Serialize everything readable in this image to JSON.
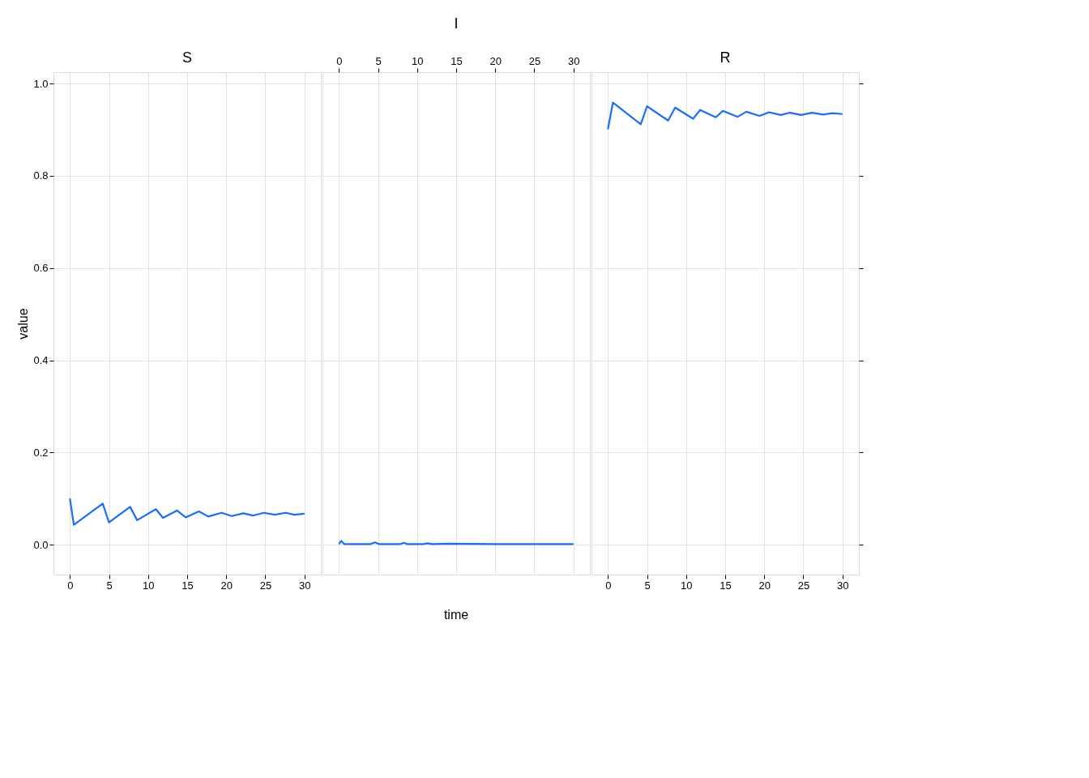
{
  "chart_data": [
    {
      "type": "line",
      "title": "S",
      "ylabel": "value",
      "xlim": [
        -2.1,
        32.1
      ],
      "ylim": [
        -0.065,
        1.025
      ],
      "xticks": [
        0,
        5,
        10,
        15,
        20,
        25,
        30
      ],
      "yticks": [
        {
          "value": 0,
          "label": "0.0"
        },
        0.2,
        0.4,
        0.6,
        0.8,
        {
          "value": 1,
          "label": "1.0"
        }
      ],
      "grid": true,
      "series": [
        {
          "color": "#1a6dff",
          "x": [
            0,
            0.5,
            4.2,
            5.0,
            7.7,
            8.6,
            11.0,
            11.9,
            13.7,
            14.8,
            16.5,
            17.7,
            19.4,
            20.7,
            22.2,
            23.4,
            24.8,
            26.2,
            27.6,
            28.7,
            30
          ],
          "values": [
            0.1,
            0.043,
            0.089,
            0.048,
            0.082,
            0.053,
            0.077,
            0.058,
            0.074,
            0.059,
            0.072,
            0.061,
            0.069,
            0.062,
            0.068,
            0.063,
            0.069,
            0.065,
            0.069,
            0.065,
            0.067
          ]
        }
      ]
    },
    {
      "type": "line",
      "title": "I",
      "xlabel": "time",
      "xlim": [
        -2.1,
        32.1
      ],
      "ylim": [
        -0.065,
        1.025
      ],
      "xticks": [
        0,
        5,
        10,
        15,
        20,
        25,
        30
      ],
      "yticks": [
        {
          "value": 0,
          "label": null
        },
        {
          "value": 0.2,
          "label": null
        },
        {
          "value": 0.4,
          "label": null
        },
        {
          "value": 0.6,
          "label": null
        },
        {
          "value": 0.8,
          "label": null
        },
        {
          "value": 1,
          "label": null
        }
      ],
      "grid": true,
      "tick_labels": "x",
      "series": [
        {
          "color": "#1a6dff",
          "x": [
            0,
            0.3,
            0.7,
            4.0,
            4.6,
            5.2,
            7.8,
            8.3,
            8.8,
            10.7,
            11.3,
            12.0,
            14.0,
            20.0,
            30
          ],
          "values": [
            0.001,
            0.008,
            0.001,
            0.001,
            0.005,
            0.001,
            0.001,
            0.004,
            0.001,
            0.001,
            0.003,
            0.001,
            0.002,
            0.001,
            0.001
          ]
        }
      ]
    },
    {
      "type": "line",
      "title": "R",
      "xlim": [
        -2.1,
        32.1
      ],
      "ylim": [
        -0.065,
        1.025
      ],
      "xticks": [
        0,
        5,
        10,
        15,
        20,
        25,
        30
      ],
      "yticks": [
        {
          "value": 0.0,
          "label": null
        },
        {
          "value": 0.2,
          "label": null
        },
        {
          "value": 0.4,
          "label": null
        },
        {
          "value": 0.6,
          "label": null
        },
        {
          "value": 0.8,
          "label": null
        },
        {
          "value": 1.0,
          "label": null
        }
      ],
      "grid": true,
      "tick_labels": "x",
      "series": [
        {
          "color": "#1a6dff",
          "x": [
            0,
            0.64,
            4.2,
            5.0,
            7.7,
            8.6,
            10.9,
            11.8,
            13.8,
            14.7,
            16.6,
            17.7,
            19.4,
            20.6,
            22.1,
            23.3,
            24.7,
            26.1,
            27.5,
            28.7,
            30
          ],
          "values": [
            0.901,
            0.959,
            0.912,
            0.951,
            0.92,
            0.948,
            0.924,
            0.943,
            0.927,
            0.941,
            0.928,
            0.939,
            0.93,
            0.938,
            0.932,
            0.937,
            0.932,
            0.937,
            0.933,
            0.936,
            0.934
          ]
        }
      ]
    }
  ]
}
